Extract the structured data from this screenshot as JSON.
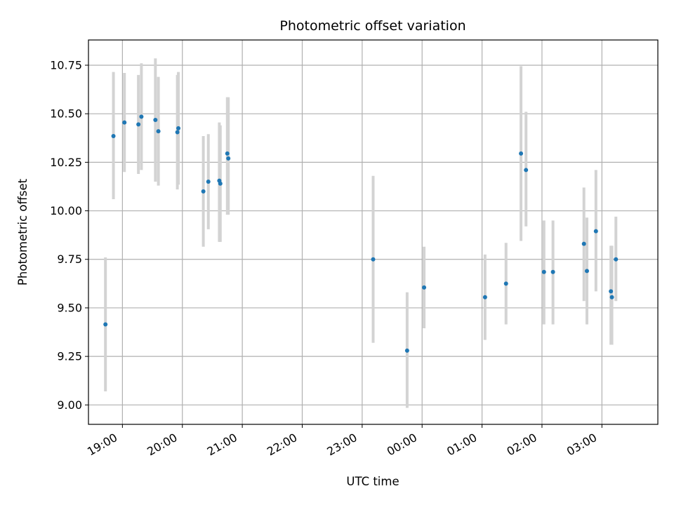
{
  "chart_data": {
    "type": "scatter",
    "title": "Photometric offset variation",
    "xlabel": "UTC time",
    "ylabel": "Photometric offset",
    "grid": true,
    "x_ticks": [
      "19:00",
      "20:00",
      "21:00",
      "22:00",
      "23:00",
      "00:00",
      "01:00",
      "02:00",
      "03:00"
    ],
    "y_ticks": [
      "9.00",
      "9.25",
      "9.50",
      "9.75",
      "10.00",
      "10.25",
      "10.50",
      "10.75"
    ],
    "xlim": [
      "18:26",
      "03:56"
    ],
    "ylim": [
      8.9,
      10.88
    ],
    "colors": {
      "points": "#1f77b4",
      "errorbars": "#d3d3d3",
      "grid": "#b0b0b0"
    },
    "points": [
      {
        "t": "18:43",
        "y": 9.415,
        "lo": 9.07,
        "hi": 9.76
      },
      {
        "t": "18:51",
        "y": 10.385,
        "lo": 10.06,
        "hi": 10.715
      },
      {
        "t": "19:02",
        "y": 10.455,
        "lo": 10.2,
        "hi": 10.71
      },
      {
        "t": "19:16",
        "y": 10.445,
        "lo": 10.19,
        "hi": 10.7
      },
      {
        "t": "19:19",
        "y": 10.485,
        "lo": 10.21,
        "hi": 10.76
      },
      {
        "t": "19:33",
        "y": 10.468,
        "lo": 10.15,
        "hi": 10.785
      },
      {
        "t": "19:36",
        "y": 10.41,
        "lo": 10.13,
        "hi": 10.69
      },
      {
        "t": "19:55",
        "y": 10.405,
        "lo": 10.11,
        "hi": 10.7
      },
      {
        "t": "19:56",
        "y": 10.425,
        "lo": 10.135,
        "hi": 10.715
      },
      {
        "t": "20:21",
        "y": 10.1,
        "lo": 9.815,
        "hi": 10.385
      },
      {
        "t": "20:26",
        "y": 10.15,
        "lo": 9.905,
        "hi": 10.395
      },
      {
        "t": "20:37",
        "y": 10.155,
        "lo": 9.84,
        "hi": 10.455
      },
      {
        "t": "20:38",
        "y": 10.14,
        "lo": 9.84,
        "hi": 10.44
      },
      {
        "t": "20:45",
        "y": 10.295,
        "lo": 9.98,
        "hi": 10.585
      },
      {
        "t": "20:46",
        "y": 10.27,
        "lo": 9.98,
        "hi": 10.585
      },
      {
        "t": "23:11",
        "y": 9.75,
        "lo": 9.32,
        "hi": 10.18
      },
      {
        "t": "23:45",
        "y": 9.28,
        "lo": 8.985,
        "hi": 9.58
      },
      {
        "t": "00:02",
        "y": 9.605,
        "lo": 9.395,
        "hi": 9.815
      },
      {
        "t": "01:03",
        "y": 9.555,
        "lo": 9.335,
        "hi": 9.775
      },
      {
        "t": "01:24",
        "y": 9.625,
        "lo": 9.415,
        "hi": 9.835
      },
      {
        "t": "01:39",
        "y": 10.295,
        "lo": 9.845,
        "hi": 10.745
      },
      {
        "t": "01:44",
        "y": 10.21,
        "lo": 9.92,
        "hi": 10.51
      },
      {
        "t": "02:02",
        "y": 9.685,
        "lo": 9.415,
        "hi": 9.95
      },
      {
        "t": "02:11",
        "y": 9.685,
        "lo": 9.415,
        "hi": 9.95
      },
      {
        "t": "02:42",
        "y": 9.83,
        "lo": 9.535,
        "hi": 10.12
      },
      {
        "t": "02:45",
        "y": 9.69,
        "lo": 9.415,
        "hi": 9.965
      },
      {
        "t": "02:54",
        "y": 9.895,
        "lo": 9.585,
        "hi": 10.21
      },
      {
        "t": "03:09",
        "y": 9.585,
        "lo": 9.31,
        "hi": 9.82
      },
      {
        "t": "03:10",
        "y": 9.555,
        "lo": 9.31,
        "hi": 9.82
      },
      {
        "t": "03:14",
        "y": 9.75,
        "lo": 9.535,
        "hi": 9.97
      }
    ]
  }
}
